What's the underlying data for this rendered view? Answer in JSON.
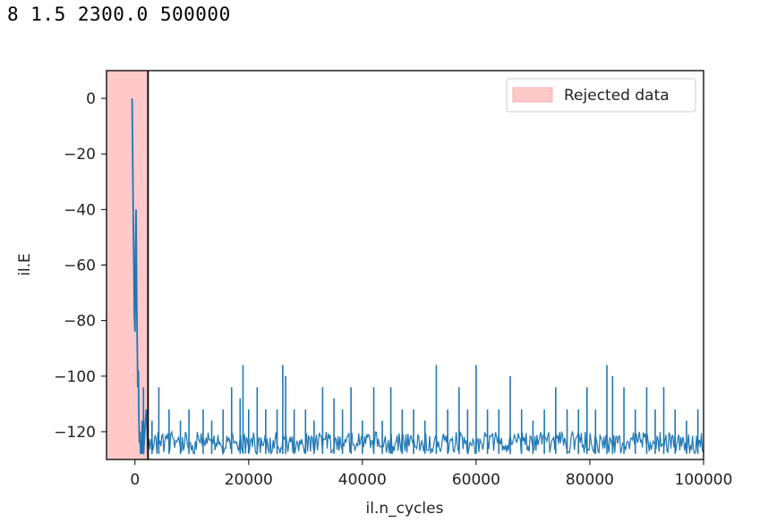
{
  "header": {
    "text": "8 1.5 2300.0 500000"
  },
  "chart_data": {
    "type": "line",
    "xlabel": "il.n_cycles",
    "ylabel": "il.E",
    "xlim": [
      -5000,
      100000
    ],
    "ylim": [
      -130,
      10
    ],
    "xticks": [
      0,
      20000,
      40000,
      60000,
      80000,
      100000
    ],
    "xtick_labels": [
      "0",
      "20000",
      "40000",
      "60000",
      "80000",
      "100000"
    ],
    "yticks": [
      0,
      -20,
      -40,
      -60,
      -80,
      -100,
      -120
    ],
    "ytick_labels": [
      "0",
      "−20",
      "−40",
      "−60",
      "−80",
      "−100",
      "−120"
    ],
    "rejected_region": {
      "x_start": -5000,
      "x_end": 2300,
      "label": "Rejected data",
      "color": "#ffc9c9"
    },
    "cutoff_line_x": 2300,
    "legend_position": "top-right",
    "grid": false,
    "series": [
      {
        "color": "#1f77b4",
        "baseline": -128,
        "band_top": -120,
        "initial_x": [
          -500,
          -400,
          -300,
          -200,
          -100,
          0,
          100,
          200,
          300,
          400,
          500,
          600,
          700,
          800,
          900,
          1000,
          1100,
          1200,
          1300,
          1500,
          1700,
          2000,
          2300
        ],
        "initial_y": [
          0,
          -20,
          -44,
          -60,
          -78,
          -84,
          -54,
          -40,
          -72,
          -88,
          -104,
          -98,
          -116,
          -124,
          -120,
          -128,
          -124,
          -128,
          -116,
          -128,
          -120,
          -112,
          -128
        ],
        "spikes_x": [
          1500,
          3000,
          4200,
          6000,
          8000,
          9500,
          12000,
          13500,
          15500,
          17000,
          18500,
          19000,
          20000,
          21500,
          23000,
          25000,
          26000,
          26500,
          28000,
          30000,
          31500,
          33000,
          35000,
          36500,
          38000,
          40000,
          42000,
          43500,
          45000,
          47000,
          49000,
          51000,
          53000,
          55000,
          57000,
          58500,
          60000,
          62000,
          64000,
          66000,
          68000,
          70000,
          72000,
          74000,
          76000,
          78000,
          79500,
          81000,
          83000,
          84000,
          86000,
          88000,
          90000,
          91500,
          93000,
          95000,
          97000,
          99000
        ],
        "spikes_y": [
          -104,
          -116,
          -104,
          -112,
          -116,
          -112,
          -112,
          -116,
          -112,
          -104,
          -108,
          -96,
          -112,
          -104,
          -112,
          -112,
          -96,
          -100,
          -112,
          -112,
          -116,
          -104,
          -108,
          -112,
          -104,
          -116,
          -104,
          -116,
          -104,
          -112,
          -112,
          -116,
          -96,
          -112,
          -104,
          -112,
          -96,
          -112,
          -112,
          -100,
          -112,
          -116,
          -112,
          -104,
          -112,
          -112,
          -104,
          -112,
          -96,
          -100,
          -104,
          -112,
          -104,
          -112,
          -104,
          -112,
          -116,
          -112
        ]
      }
    ]
  }
}
